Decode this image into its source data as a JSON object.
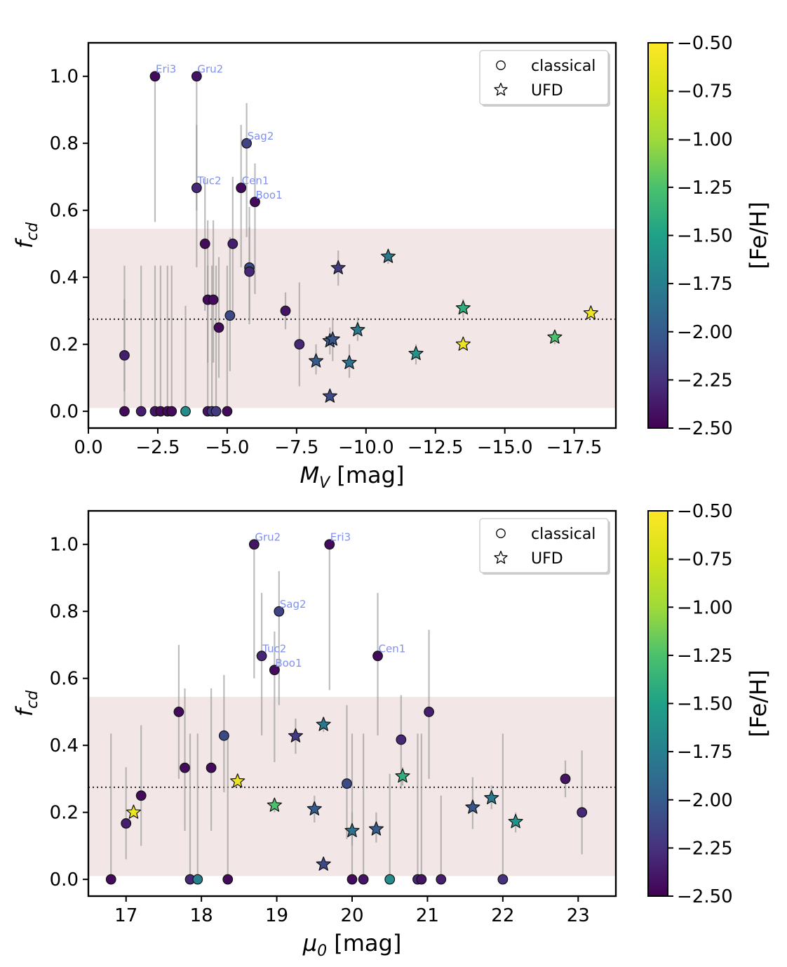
{
  "figure": {
    "panel_count": 2
  },
  "chart_data": [
    {
      "type": "scatter",
      "id": "top",
      "xlabel": "M",
      "xlabel_sub": "V",
      "xlabel_unit": " [mag]",
      "ylabel": "f",
      "ylabel_sub": "cd",
      "xlim": [
        0.0,
        -19.0
      ],
      "ylim": [
        -0.05,
        1.1
      ],
      "xticks": [
        0.0,
        -2.5,
        -5.0,
        -7.5,
        -10.0,
        -12.5,
        -15.0,
        -17.5
      ],
      "xtick_labels": [
        "0.0",
        "−2.5",
        "−5.0",
        "−7.5",
        "−10.0",
        "−12.5",
        "−15.0",
        "−17.5"
      ],
      "yticks": [
        0.0,
        0.2,
        0.4,
        0.6,
        0.8,
        1.0
      ],
      "ytick_labels": [
        "0.0",
        "0.2",
        "0.4",
        "0.6",
        "0.8",
        "1.0"
      ],
      "mean_line": 0.275,
      "band": [
        0.01,
        0.545
      ],
      "legend": {
        "position": "top-right",
        "entries": [
          {
            "marker": "circle",
            "label": "classical"
          },
          {
            "marker": "star",
            "label": "UFD"
          }
        ]
      },
      "colorbar": {
        "label": "[Fe/H]",
        "min": -2.5,
        "max": -0.5,
        "ticks": [
          -0.5,
          -0.75,
          -1.0,
          -1.25,
          -1.5,
          -1.75,
          -2.0,
          -2.25,
          -2.5
        ],
        "tick_labels": [
          "−0.50",
          "−0.75",
          "−1.00",
          "−1.25",
          "−1.50",
          "−1.75",
          "−2.00",
          "−2.25",
          "−2.50"
        ]
      },
      "points": [
        {
          "x": -2.4,
          "y": 1.0,
          "lo": 0.565,
          "hi": 1.0,
          "feh": -2.45,
          "marker": "circle",
          "label": "Eri3"
        },
        {
          "x": -3.9,
          "y": 1.0,
          "lo": 0.6,
          "hi": 1.0,
          "feh": -2.4,
          "marker": "circle",
          "label": "Gru2"
        },
        {
          "x": -5.7,
          "y": 0.8,
          "lo": 0.52,
          "hi": 0.92,
          "feh": -2.15,
          "marker": "circle",
          "label": "Sag2"
        },
        {
          "x": -3.9,
          "y": 0.667,
          "lo": 0.43,
          "hi": 0.855,
          "feh": -2.3,
          "marker": "circle",
          "label": "Tuc2"
        },
        {
          "x": -5.5,
          "y": 0.667,
          "lo": 0.43,
          "hi": 0.855,
          "feh": -2.45,
          "marker": "circle",
          "label": "Cen1"
        },
        {
          "x": -6.0,
          "y": 0.625,
          "lo": 0.35,
          "hi": 0.74,
          "feh": -2.45,
          "marker": "circle",
          "label": "Boo1"
        },
        {
          "x": -1.3,
          "y": 0.167,
          "lo": 0.06,
          "hi": 0.335,
          "feh": -2.35,
          "marker": "circle",
          "label": ""
        },
        {
          "x": -1.3,
          "y": 0.0,
          "lo": 0.0,
          "hi": 0.435,
          "feh": -2.45,
          "marker": "circle",
          "label": ""
        },
        {
          "x": -1.9,
          "y": 0.0,
          "lo": 0.0,
          "hi": 0.435,
          "feh": -2.35,
          "marker": "circle",
          "label": ""
        },
        {
          "x": -2.4,
          "y": 0.0,
          "lo": 0.0,
          "hi": 0.435,
          "feh": -2.4,
          "marker": "circle",
          "label": ""
        },
        {
          "x": -2.6,
          "y": 0.0,
          "lo": 0.0,
          "hi": 0.435,
          "feh": -2.45,
          "marker": "circle",
          "label": ""
        },
        {
          "x": -2.85,
          "y": 0.0,
          "lo": 0.0,
          "hi": 0.435,
          "feh": -2.45,
          "marker": "circle",
          "label": ""
        },
        {
          "x": -3.0,
          "y": 0.0,
          "lo": 0.0,
          "hi": 0.435,
          "feh": -2.45,
          "marker": "circle",
          "label": ""
        },
        {
          "x": -3.5,
          "y": 0.0,
          "lo": 0.0,
          "hi": 0.315,
          "feh": -1.65,
          "marker": "circle",
          "label": ""
        },
        {
          "x": -4.2,
          "y": 0.5,
          "lo": 0.3,
          "hi": 0.7,
          "feh": -2.45,
          "marker": "circle",
          "label": ""
        },
        {
          "x": -4.3,
          "y": 0.333,
          "lo": 0.145,
          "hi": 0.57,
          "feh": -2.45,
          "marker": "circle",
          "label": ""
        },
        {
          "x": -4.5,
          "y": 0.333,
          "lo": 0.145,
          "hi": 0.57,
          "feh": -2.45,
          "marker": "circle",
          "label": ""
        },
        {
          "x": -4.7,
          "y": 0.25,
          "lo": 0.1,
          "hi": 0.46,
          "feh": -2.45,
          "marker": "circle",
          "label": ""
        },
        {
          "x": -4.3,
          "y": 0.0,
          "lo": 0.0,
          "hi": 0.435,
          "feh": -2.4,
          "marker": "circle",
          "label": ""
        },
        {
          "x": -4.45,
          "y": 0.0,
          "lo": 0.0,
          "hi": 0.435,
          "feh": -2.2,
          "marker": "circle",
          "label": ""
        },
        {
          "x": -4.6,
          "y": 0.0,
          "lo": 0.0,
          "hi": 0.435,
          "feh": -2.2,
          "marker": "circle",
          "label": ""
        },
        {
          "x": -5.0,
          "y": 0.0,
          "lo": 0.0,
          "hi": 0.435,
          "feh": -2.45,
          "marker": "circle",
          "label": ""
        },
        {
          "x": -5.1,
          "y": 0.286,
          "lo": 0.12,
          "hi": 0.52,
          "feh": -2.1,
          "marker": "circle",
          "label": ""
        },
        {
          "x": -5.2,
          "y": 0.5,
          "lo": 0.3,
          "hi": 0.7,
          "feh": -2.35,
          "marker": "circle",
          "label": ""
        },
        {
          "x": -5.8,
          "y": 0.429,
          "lo": 0.26,
          "hi": 0.61,
          "feh": -2.1,
          "marker": "circle",
          "label": ""
        },
        {
          "x": -5.8,
          "y": 0.417,
          "lo": 0.27,
          "hi": 0.55,
          "feh": -2.3,
          "marker": "circle",
          "label": ""
        },
        {
          "x": -7.1,
          "y": 0.3,
          "lo": 0.245,
          "hi": 0.355,
          "feh": -2.4,
          "marker": "circle",
          "label": ""
        },
        {
          "x": -7.6,
          "y": 0.2,
          "lo": 0.075,
          "hi": 0.385,
          "feh": -2.3,
          "marker": "circle",
          "label": ""
        },
        {
          "x": -8.2,
          "y": 0.15,
          "lo": 0.11,
          "hi": 0.2,
          "feh": -2.0,
          "marker": "star",
          "label": ""
        },
        {
          "x": -8.7,
          "y": 0.21,
          "lo": 0.17,
          "hi": 0.25,
          "feh": -2.0,
          "marker": "star",
          "label": ""
        },
        {
          "x": -8.8,
          "y": 0.215,
          "lo": 0.15,
          "hi": 0.28,
          "feh": -2.05,
          "marker": "star",
          "label": ""
        },
        {
          "x": -8.7,
          "y": 0.045,
          "lo": 0.03,
          "hi": 0.06,
          "feh": -2.1,
          "marker": "star",
          "label": ""
        },
        {
          "x": -9.0,
          "y": 0.428,
          "lo": 0.375,
          "hi": 0.48,
          "feh": -2.2,
          "marker": "star",
          "label": ""
        },
        {
          "x": -9.4,
          "y": 0.145,
          "lo": 0.1,
          "hi": 0.2,
          "feh": -1.85,
          "marker": "star",
          "label": ""
        },
        {
          "x": -9.7,
          "y": 0.243,
          "lo": 0.21,
          "hi": 0.28,
          "feh": -1.8,
          "marker": "star",
          "label": ""
        },
        {
          "x": -10.8,
          "y": 0.462,
          "lo": 0.44,
          "hi": 0.485,
          "feh": -1.8,
          "marker": "star",
          "label": ""
        },
        {
          "x": -11.8,
          "y": 0.172,
          "lo": 0.14,
          "hi": 0.2,
          "feh": -1.6,
          "marker": "star",
          "label": ""
        },
        {
          "x": -13.5,
          "y": 0.308,
          "lo": 0.28,
          "hi": 0.335,
          "feh": -1.4,
          "marker": "star",
          "label": ""
        },
        {
          "x": -13.5,
          "y": 0.2,
          "lo": 0.185,
          "hi": 0.215,
          "feh": -0.6,
          "marker": "star",
          "label": ""
        },
        {
          "x": -16.8,
          "y": 0.221,
          "lo": 0.2,
          "hi": 0.24,
          "feh": -1.25,
          "marker": "star",
          "label": ""
        },
        {
          "x": -18.1,
          "y": 0.293,
          "lo": 0.285,
          "hi": 0.3,
          "feh": -0.6,
          "marker": "star",
          "label": ""
        }
      ]
    },
    {
      "type": "scatter",
      "id": "bottom",
      "xlabel": "μ",
      "xlabel_sub": "0",
      "xlabel_unit": " [mag]",
      "ylabel": "f",
      "ylabel_sub": "cd",
      "xlim": [
        16.5,
        23.5
      ],
      "ylim": [
        -0.05,
        1.1
      ],
      "xticks": [
        17,
        18,
        19,
        20,
        21,
        22,
        23
      ],
      "xtick_labels": [
        "17",
        "18",
        "19",
        "20",
        "21",
        "22",
        "23"
      ],
      "yticks": [
        0.0,
        0.2,
        0.4,
        0.6,
        0.8,
        1.0
      ],
      "ytick_labels": [
        "0.0",
        "0.2",
        "0.4",
        "0.6",
        "0.8",
        "1.0"
      ],
      "mean_line": 0.275,
      "band": [
        0.01,
        0.545
      ],
      "legend": {
        "position": "top-right",
        "entries": [
          {
            "marker": "circle",
            "label": "classical"
          },
          {
            "marker": "star",
            "label": "UFD"
          }
        ]
      },
      "colorbar": {
        "label": "[Fe/H]",
        "min": -2.5,
        "max": -0.5,
        "ticks": [
          -0.5,
          -0.75,
          -1.0,
          -1.25,
          -1.5,
          -1.75,
          -2.0,
          -2.25,
          -2.5
        ],
        "tick_labels": [
          "−0.50",
          "−0.75",
          "−1.00",
          "−1.25",
          "−1.50",
          "−1.75",
          "−2.00",
          "−2.25",
          "−2.50"
        ]
      },
      "points": [
        {
          "x": 18.7,
          "y": 1.0,
          "lo": 0.6,
          "hi": 1.0,
          "feh": -2.4,
          "marker": "circle",
          "label": "Gru2"
        },
        {
          "x": 19.7,
          "y": 1.0,
          "lo": 0.565,
          "hi": 1.0,
          "feh": -2.45,
          "marker": "circle",
          "label": "Eri3"
        },
        {
          "x": 19.03,
          "y": 0.8,
          "lo": 0.52,
          "hi": 0.92,
          "feh": -2.15,
          "marker": "circle",
          "label": "Sag2"
        },
        {
          "x": 18.8,
          "y": 0.667,
          "lo": 0.43,
          "hi": 0.855,
          "feh": -2.3,
          "marker": "circle",
          "label": "Tuc2"
        },
        {
          "x": 18.97,
          "y": 0.625,
          "lo": 0.35,
          "hi": 0.74,
          "feh": -2.45,
          "marker": "circle",
          "label": "Boo1"
        },
        {
          "x": 20.34,
          "y": 0.667,
          "lo": 0.43,
          "hi": 0.855,
          "feh": -2.45,
          "marker": "circle",
          "label": "Cen1"
        },
        {
          "x": 16.8,
          "y": 0.0,
          "lo": 0.0,
          "hi": 0.435,
          "feh": -2.45,
          "marker": "circle",
          "label": ""
        },
        {
          "x": 17.0,
          "y": 0.167,
          "lo": 0.06,
          "hi": 0.335,
          "feh": -2.35,
          "marker": "circle",
          "label": ""
        },
        {
          "x": 17.1,
          "y": 0.2,
          "lo": 0.185,
          "hi": 0.215,
          "feh": -0.6,
          "marker": "star",
          "label": ""
        },
        {
          "x": 17.2,
          "y": 0.25,
          "lo": 0.1,
          "hi": 0.46,
          "feh": -2.45,
          "marker": "circle",
          "label": ""
        },
        {
          "x": 17.7,
          "y": 0.5,
          "lo": 0.3,
          "hi": 0.7,
          "feh": -2.45,
          "marker": "circle",
          "label": ""
        },
        {
          "x": 17.78,
          "y": 0.333,
          "lo": 0.145,
          "hi": 0.57,
          "feh": -2.45,
          "marker": "circle",
          "label": ""
        },
        {
          "x": 17.85,
          "y": 0.0,
          "lo": 0.0,
          "hi": 0.435,
          "feh": -2.3,
          "marker": "circle",
          "label": ""
        },
        {
          "x": 17.95,
          "y": 0.0,
          "lo": 0.0,
          "hi": 0.435,
          "feh": -1.75,
          "marker": "circle",
          "label": ""
        },
        {
          "x": 18.13,
          "y": 0.333,
          "lo": 0.145,
          "hi": 0.57,
          "feh": -2.45,
          "marker": "circle",
          "label": ""
        },
        {
          "x": 18.3,
          "y": 0.429,
          "lo": 0.26,
          "hi": 0.61,
          "feh": -2.1,
          "marker": "circle",
          "label": ""
        },
        {
          "x": 18.35,
          "y": 0.0,
          "lo": 0.0,
          "hi": 0.435,
          "feh": -2.45,
          "marker": "circle",
          "label": ""
        },
        {
          "x": 18.48,
          "y": 0.293,
          "lo": 0.285,
          "hi": 0.3,
          "feh": -0.6,
          "marker": "star",
          "label": ""
        },
        {
          "x": 18.97,
          "y": 0.221,
          "lo": 0.2,
          "hi": 0.24,
          "feh": -1.25,
          "marker": "star",
          "label": ""
        },
        {
          "x": 19.25,
          "y": 0.428,
          "lo": 0.375,
          "hi": 0.48,
          "feh": -2.2,
          "marker": "star",
          "label": ""
        },
        {
          "x": 19.5,
          "y": 0.21,
          "lo": 0.17,
          "hi": 0.25,
          "feh": -2.0,
          "marker": "star",
          "label": ""
        },
        {
          "x": 19.62,
          "y": 0.462,
          "lo": 0.44,
          "hi": 0.485,
          "feh": -1.8,
          "marker": "star",
          "label": ""
        },
        {
          "x": 19.62,
          "y": 0.045,
          "lo": 0.03,
          "hi": 0.06,
          "feh": -2.1,
          "marker": "star",
          "label": ""
        },
        {
          "x": 19.93,
          "y": 0.286,
          "lo": 0.12,
          "hi": 0.52,
          "feh": -2.1,
          "marker": "circle",
          "label": ""
        },
        {
          "x": 20.0,
          "y": 0.145,
          "lo": 0.1,
          "hi": 0.2,
          "feh": -1.85,
          "marker": "star",
          "label": ""
        },
        {
          "x": 20.0,
          "y": 0.0,
          "lo": 0.0,
          "hi": 0.435,
          "feh": -2.45,
          "marker": "circle",
          "label": ""
        },
        {
          "x": 20.15,
          "y": 0.0,
          "lo": 0.0,
          "hi": 0.435,
          "feh": -2.4,
          "marker": "circle",
          "label": ""
        },
        {
          "x": 20.32,
          "y": 0.15,
          "lo": 0.11,
          "hi": 0.2,
          "feh": -2.0,
          "marker": "star",
          "label": ""
        },
        {
          "x": 20.5,
          "y": 0.0,
          "lo": 0.0,
          "hi": 0.315,
          "feh": -1.65,
          "marker": "circle",
          "label": ""
        },
        {
          "x": 20.65,
          "y": 0.417,
          "lo": 0.27,
          "hi": 0.55,
          "feh": -2.3,
          "marker": "circle",
          "label": ""
        },
        {
          "x": 20.67,
          "y": 0.308,
          "lo": 0.28,
          "hi": 0.335,
          "feh": -1.4,
          "marker": "star",
          "label": ""
        },
        {
          "x": 20.87,
          "y": 0.0,
          "lo": 0.0,
          "hi": 0.435,
          "feh": -2.3,
          "marker": "circle",
          "label": ""
        },
        {
          "x": 20.92,
          "y": 0.0,
          "lo": 0.0,
          "hi": 0.435,
          "feh": -2.4,
          "marker": "circle",
          "label": ""
        },
        {
          "x": 21.02,
          "y": 0.5,
          "lo": 0.3,
          "hi": 0.745,
          "feh": -2.35,
          "marker": "circle",
          "label": ""
        },
        {
          "x": 21.18,
          "y": 0.0,
          "lo": 0.0,
          "hi": 0.25,
          "feh": -2.35,
          "marker": "circle",
          "label": ""
        },
        {
          "x": 21.6,
          "y": 0.215,
          "lo": 0.15,
          "hi": 0.305,
          "feh": -2.05,
          "marker": "star",
          "label": ""
        },
        {
          "x": 21.85,
          "y": 0.243,
          "lo": 0.21,
          "hi": 0.28,
          "feh": -1.8,
          "marker": "star",
          "label": ""
        },
        {
          "x": 22.0,
          "y": 0.0,
          "lo": 0.0,
          "hi": 0.435,
          "feh": -2.25,
          "marker": "circle",
          "label": ""
        },
        {
          "x": 22.17,
          "y": 0.172,
          "lo": 0.14,
          "hi": 0.2,
          "feh": -1.6,
          "marker": "star",
          "label": ""
        },
        {
          "x": 22.83,
          "y": 0.3,
          "lo": 0.245,
          "hi": 0.355,
          "feh": -2.4,
          "marker": "circle",
          "label": ""
        },
        {
          "x": 23.05,
          "y": 0.2,
          "lo": 0.075,
          "hi": 0.385,
          "feh": -2.3,
          "marker": "circle",
          "label": ""
        }
      ]
    }
  ]
}
